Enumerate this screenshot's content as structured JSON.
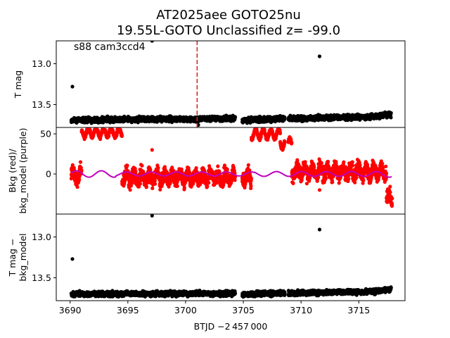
{
  "chart_data": {
    "type": "scatter",
    "title_line1": "AT2025aee  GOTO25nu",
    "title_line2": "19.55L-GOTO Unclassified z= -99.0",
    "xlabel": "BTJD −2 457 000",
    "xlim": [
      3688.8,
      3719.0
    ],
    "xticks": [
      3690,
      3695,
      3700,
      3705,
      3710,
      3715
    ],
    "xtick_labels": [
      "3690",
      "3695",
      "3700",
      "3705",
      "3710",
      "3715"
    ],
    "gaps": [
      [
        3704.3,
        3704.9
      ],
      [
        3708.6,
        3708.9
      ]
    ],
    "marker_x": 3701.0,
    "marker_color": "#d62728",
    "panels": [
      {
        "id": "tmag",
        "ylabel": "T mag",
        "ylabel_lines": [
          "T mag"
        ],
        "ylim": [
          12.72,
          13.78
        ],
        "inverted": true,
        "yticks": [
          13.0,
          13.5
        ],
        "ytick_labels": [
          "13.0",
          "13.5"
        ],
        "annotation": "s88 cam3ccd4",
        "color": "#000000",
        "baseline": [
          [
            3690.1,
            13.69
          ],
          [
            3704.3,
            13.67
          ],
          [
            3704.9,
            13.69
          ],
          [
            3712.0,
            13.66
          ],
          [
            3716.0,
            13.65
          ],
          [
            3717.8,
            13.62
          ]
        ],
        "scatter": 0.045,
        "outliers": [
          [
            3690.2,
            13.28
          ],
          [
            3697.1,
            12.72
          ],
          [
            3711.6,
            12.91
          ],
          [
            3701.1,
            13.75
          ]
        ]
      },
      {
        "id": "bkg",
        "ylabel": "Bkg (red)/ bkg_model (purple)",
        "ylabel_lines": [
          "Bkg (red)/",
          "bkg_model (purple)"
        ],
        "ylim": [
          -50,
          58
        ],
        "inverted": false,
        "yticks": [
          0,
          50
        ],
        "ytick_labels": [
          "0",
          "50"
        ],
        "color": "#ff0000",
        "model_color": "#bf00bf",
        "segments": [
          [
            3690.1,
            3691.0,
            -2
          ],
          [
            3691.0,
            3694.5,
            52
          ],
          [
            3694.5,
            3705.7,
            -4
          ],
          [
            3705.7,
            3708.2,
            50
          ],
          [
            3708.2,
            3709.2,
            38
          ],
          [
            3709.2,
            3717.4,
            3
          ],
          [
            3717.4,
            3717.9,
            -30
          ]
        ],
        "scatter": 13,
        "outliers": [
          [
            3697.1,
            30
          ],
          [
            3711.6,
            -20
          ],
          [
            3710.5,
            -12
          ]
        ]
      },
      {
        "id": "detrended",
        "ylabel": "T mag − bkg_model",
        "ylabel_lines": [
          "T mag −",
          "bkg_model"
        ],
        "ylim": [
          12.72,
          13.78
        ],
        "inverted": true,
        "yticks": [
          13.0,
          13.5
        ],
        "ytick_labels": [
          "13.0",
          "13.5"
        ],
        "color": "#000000",
        "baseline": [
          [
            3690.1,
            13.7
          ],
          [
            3704.3,
            13.69
          ],
          [
            3704.9,
            13.7
          ],
          [
            3712.0,
            13.68
          ],
          [
            3716.0,
            13.67
          ],
          [
            3717.8,
            13.64
          ]
        ],
        "scatter": 0.045,
        "outliers": [
          [
            3690.2,
            13.27
          ],
          [
            3697.1,
            12.74
          ],
          [
            3711.6,
            12.91
          ]
        ]
      }
    ]
  }
}
